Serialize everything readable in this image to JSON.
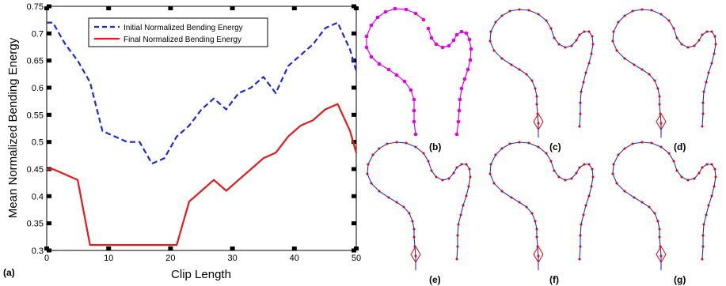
{
  "chart_data": {
    "type": "line",
    "xlabel": "Clip Length",
    "ylabel": "Mean Normalized Bending Energy",
    "xlim": [
      0,
      50
    ],
    "ylim": [
      0.3,
      0.75
    ],
    "x_ticks": [
      0,
      10,
      20,
      30,
      40,
      50
    ],
    "y_ticks": [
      0.3,
      0.35,
      0.4,
      0.45,
      0.5,
      0.55,
      0.6,
      0.65,
      0.7,
      0.75
    ],
    "legend_position": "top-center",
    "grid": false,
    "series": [
      {
        "name": "Initial Normalized Bending Energy",
        "color": "#1a2bd6",
        "style": "dashed",
        "x": [
          0,
          1,
          3,
          5,
          7,
          9,
          11,
          13,
          15,
          17,
          19,
          21,
          23,
          25,
          27,
          29,
          31,
          33,
          35,
          37,
          39,
          41,
          43,
          45,
          47,
          49,
          50
        ],
        "y": [
          0.72,
          0.72,
          0.68,
          0.65,
          0.61,
          0.52,
          0.51,
          0.5,
          0.5,
          0.46,
          0.47,
          0.51,
          0.53,
          0.56,
          0.58,
          0.56,
          0.59,
          0.6,
          0.62,
          0.59,
          0.64,
          0.66,
          0.68,
          0.71,
          0.72,
          0.67,
          0.63
        ]
      },
      {
        "name": "Final Normalized Bending Energy",
        "color": "#e41a1a",
        "style": "solid",
        "x": [
          0,
          1,
          3,
          5,
          7,
          9,
          11,
          13,
          15,
          17,
          19,
          21,
          23,
          25,
          27,
          29,
          31,
          33,
          35,
          37,
          39,
          41,
          43,
          45,
          47,
          49,
          50
        ],
        "y": [
          0.45,
          0.45,
          0.44,
          0.43,
          0.31,
          0.31,
          0.31,
          0.31,
          0.31,
          0.31,
          0.31,
          0.31,
          0.39,
          0.41,
          0.43,
          0.41,
          0.43,
          0.45,
          0.47,
          0.48,
          0.51,
          0.53,
          0.54,
          0.56,
          0.57,
          0.52,
          0.48
        ]
      }
    ]
  },
  "labels": {
    "a": "(a)",
    "b": "(b)",
    "c": "(c)",
    "d": "(d)",
    "e": "(e)",
    "f": "(f)",
    "g": "(g)"
  },
  "colors": {
    "curve": "#1f2fe0",
    "magenta_point": "#e100e1",
    "red_point": "#e00000",
    "diamond": "#e00000"
  }
}
